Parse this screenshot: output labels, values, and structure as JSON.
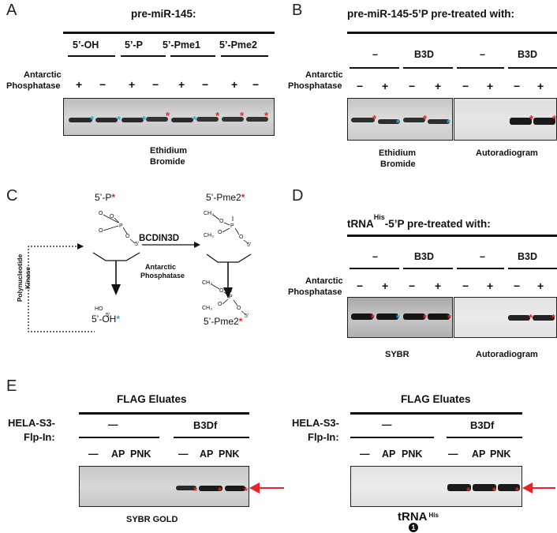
{
  "panel_labels": {
    "a": "A",
    "b": "B",
    "c": "C",
    "d": "D",
    "e": "E"
  },
  "panelA": {
    "title": "pre-miR-145:",
    "groups": [
      "5’-OH",
      "5’-P",
      "5’-Pme1",
      "5’-Pme2"
    ],
    "row_label_1": "Antarctic",
    "row_label_2": "Phosphatase",
    "signs": [
      "+",
      "−",
      "+",
      "−",
      "+",
      "−",
      "+",
      "−"
    ],
    "caption_1": "Ethidium",
    "caption_2": "Bromide"
  },
  "panelB": {
    "title": "pre-miR-145-5’P pre-treated with:",
    "groups": [
      "–",
      "B3D",
      "–",
      "B3D"
    ],
    "row_label_1": "Antarctic",
    "row_label_2": "Phosphatase",
    "signs": [
      "−",
      "+",
      "−",
      "+",
      "−",
      "+",
      "−",
      "+"
    ],
    "caption_left_1": "Ethidium",
    "caption_left_2": "Bromide",
    "caption_right": "Autoradiogram"
  },
  "panelC": {
    "top_left": "5’-P",
    "top_right": "5’-Pme2",
    "bottom_left": "5’-OH",
    "bottom_right": "5’-Pme2",
    "enzyme": "BCDIN3D",
    "treatment_1": "Antarctic",
    "treatment_2": "Phosphatase",
    "kinase_1": "Polynucleotide",
    "kinase_2": "Kinase",
    "chem_o": "O",
    "chem_p": "P",
    "chem_5": "5’",
    "chem_ho": "HO",
    "chem_ch3": "CH₃"
  },
  "panelD": {
    "title_pre": "tRNA",
    "title_sup": "His",
    "title_post": "-5’P pre-treated with:",
    "groups": [
      "–",
      "B3D",
      "–",
      "B3D"
    ],
    "row_label_1": "Antarctic",
    "row_label_2": "Phosphatase",
    "signs": [
      "−",
      "+",
      "−",
      "+",
      "−",
      "+",
      "−",
      "+"
    ],
    "caption_left": "SYBR",
    "caption_right": "Autoradiogram"
  },
  "panelE": {
    "left": {
      "title": "FLAG Eluates",
      "cell_1": "HELA-S3-",
      "cell_2": "Flp-In:",
      "group_1": "—",
      "group_2": "B3Df",
      "lanes": [
        "—",
        "AP",
        "PNK",
        "—",
        "AP",
        "PNK"
      ],
      "caption": "SYBR GOLD"
    },
    "right": {
      "title": "FLAG Eluates",
      "cell_1": "HELA-S3-",
      "cell_2": "Flp-In:",
      "group_1": "—",
      "group_2": "B3Df",
      "lanes": [
        "—",
        "AP",
        "PNK",
        "—",
        "AP",
        "PNK"
      ],
      "caption_pre": "tRNA",
      "caption_sup": "His",
      "badge": "1"
    }
  },
  "colors": {
    "red_star": "#e8242b",
    "blue_star": "#29aae2",
    "arrow": "#e8242b"
  }
}
